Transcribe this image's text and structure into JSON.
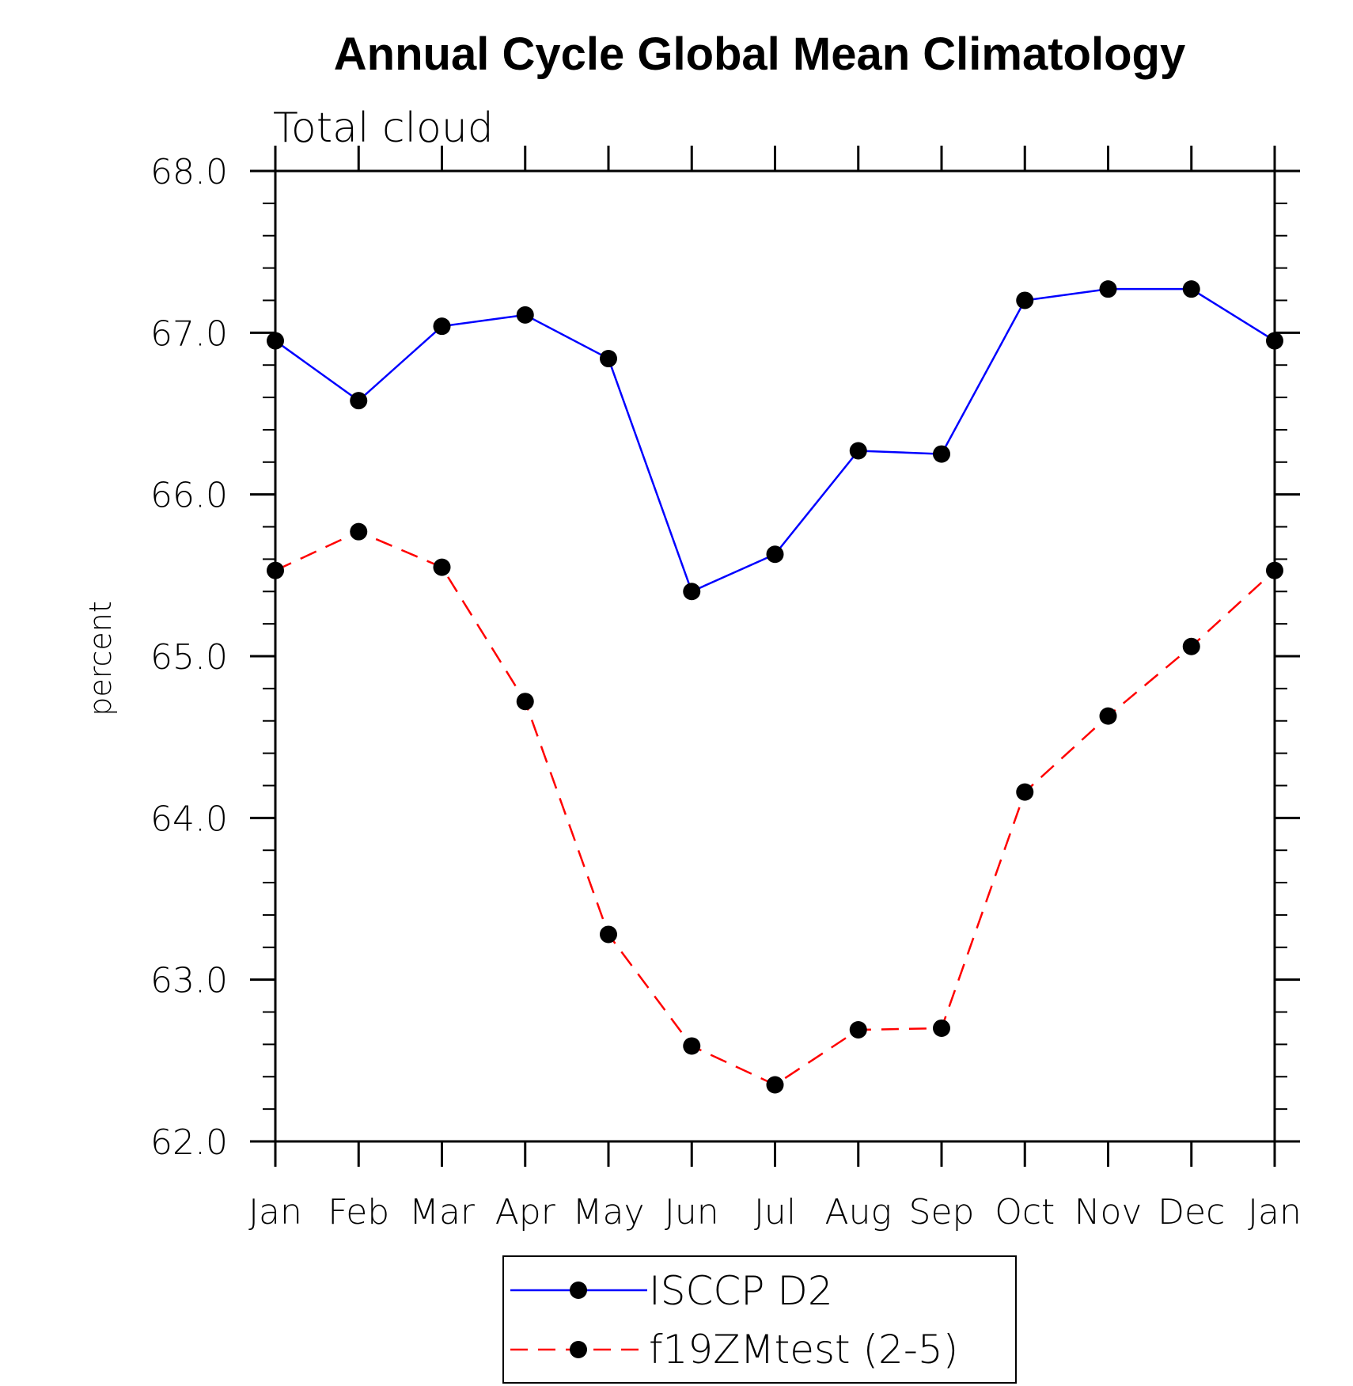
{
  "chart_data": {
    "type": "line",
    "title": "Annual Cycle Global Mean Climatology",
    "subtitle": "Total cloud",
    "xlabel": "",
    "ylabel": "percent",
    "categories": [
      "Jan",
      "Feb",
      "Mar",
      "Apr",
      "May",
      "Jun",
      "Jul",
      "Aug",
      "Sep",
      "Oct",
      "Nov",
      "Dec",
      "Jan"
    ],
    "ylim": [
      62.0,
      68.0
    ],
    "yticks": [
      "62.0",
      "63.0",
      "64.0",
      "65.0",
      "66.0",
      "67.0",
      "68.0"
    ],
    "grid": false,
    "legend_position": "bottom-center",
    "series": [
      {
        "name": "ISCCP D2",
        "color": "#0000ff",
        "line_style": "solid",
        "marker": "filled-circle",
        "values": [
          66.95,
          66.58,
          67.04,
          67.11,
          66.84,
          65.4,
          65.63,
          66.27,
          66.25,
          67.2,
          67.27,
          67.27,
          66.95
        ]
      },
      {
        "name": "f19ZMtest (2-5)",
        "color": "#ff0000",
        "line_style": "dashed",
        "marker": "filled-circle",
        "values": [
          65.53,
          65.77,
          65.55,
          64.72,
          63.28,
          62.59,
          62.35,
          62.69,
          62.7,
          64.16,
          64.63,
          65.06,
          65.53
        ]
      }
    ]
  }
}
